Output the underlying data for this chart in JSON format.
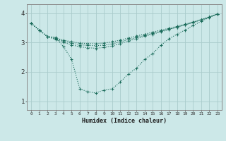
{
  "xlabel": "Humidex (Indice chaleur)",
  "bg_color": "#cce8e8",
  "grid_color": "#aacccc",
  "line_color": "#1a6b5a",
  "xlim": [
    -0.5,
    23.5
  ],
  "ylim": [
    0.7,
    4.3
  ],
  "xticks": [
    0,
    1,
    2,
    3,
    4,
    5,
    6,
    7,
    8,
    9,
    10,
    11,
    12,
    13,
    14,
    15,
    16,
    17,
    18,
    19,
    20,
    21,
    22,
    23
  ],
  "yticks": [
    1,
    2,
    3,
    4
  ],
  "line1_y": [
    3.65,
    3.42,
    3.2,
    3.18,
    2.85,
    2.42,
    1.42,
    1.32,
    1.28,
    1.38,
    1.42,
    1.65,
    1.93,
    2.12,
    2.42,
    2.62,
    2.9,
    3.12,
    3.28,
    3.42,
    3.58,
    3.72,
    3.85,
    3.97
  ],
  "line2_y": [
    3.65,
    3.42,
    3.2,
    3.15,
    3.08,
    3.02,
    2.98,
    2.96,
    2.96,
    2.98,
    3.02,
    3.08,
    3.15,
    3.22,
    3.28,
    3.35,
    3.42,
    3.48,
    3.55,
    3.62,
    3.7,
    3.78,
    3.87,
    3.97
  ],
  "line3_y": [
    3.65,
    3.42,
    3.2,
    3.12,
    3.05,
    2.98,
    2.92,
    2.9,
    2.89,
    2.91,
    2.95,
    3.02,
    3.1,
    3.17,
    3.24,
    3.31,
    3.38,
    3.45,
    3.52,
    3.6,
    3.68,
    3.77,
    3.86,
    3.97
  ],
  "line4_y": [
    3.65,
    3.42,
    3.2,
    3.1,
    3.0,
    2.92,
    2.85,
    2.82,
    2.8,
    2.83,
    2.88,
    2.96,
    3.05,
    3.13,
    3.21,
    3.28,
    3.36,
    3.44,
    3.52,
    3.6,
    3.68,
    3.77,
    3.86,
    3.97
  ]
}
